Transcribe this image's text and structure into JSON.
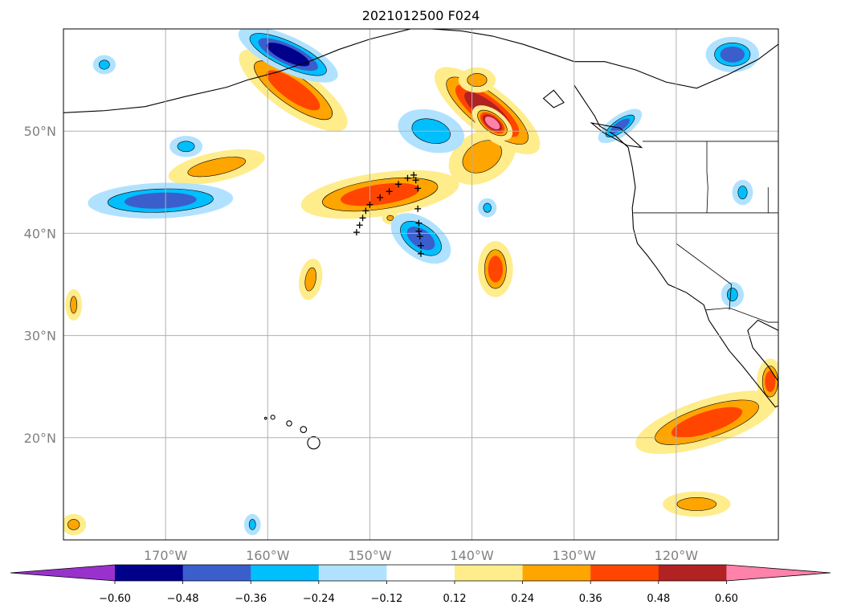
{
  "title": "2021012500 F024",
  "map": {
    "projection": "PlateCarree",
    "extent": {
      "lon_min": -180,
      "lon_max": -110,
      "lat_min": 10,
      "lat_max": 60
    },
    "lat_ticks": [
      {
        "value": 50,
        "label": "50°N"
      },
      {
        "value": 40,
        "label": "40°N"
      },
      {
        "value": 30,
        "label": "30°N"
      },
      {
        "value": 20,
        "label": "20°N"
      }
    ],
    "lon_ticks": [
      {
        "value": -170,
        "label": "170°W"
      },
      {
        "value": -160,
        "label": "160°W"
      },
      {
        "value": -150,
        "label": "150°W"
      },
      {
        "value": -140,
        "label": "140°W"
      },
      {
        "value": -130,
        "label": "130°W"
      },
      {
        "value": -120,
        "label": "120°W"
      }
    ],
    "gridlines": true,
    "coastline_color": "#000000",
    "gridline_color": "#b0b0b0"
  },
  "colorbar": {
    "orientation": "horizontal",
    "extend": "both",
    "levels": [
      -0.6,
      -0.48,
      -0.36,
      -0.24,
      -0.12,
      0.12,
      0.24,
      0.36,
      0.48,
      0.6
    ],
    "labels": [
      "−0.60",
      "−0.48",
      "−0.36",
      "−0.24",
      "−0.12",
      "0.12",
      "0.24",
      "0.36",
      "0.48",
      "0.60"
    ],
    "colors": [
      "#9932cc",
      "#00008b",
      "#3a5fcd",
      "#00bfff",
      "#b0e2ff",
      "#ffffff",
      "#ffec8b",
      "#ffa500",
      "#ff4500",
      "#b22222",
      "#ff82ab"
    ]
  },
  "track_markers": {
    "symbol": "+",
    "points": [
      [
        -151.3,
        40.1
      ],
      [
        -151.0,
        40.8
      ],
      [
        -150.7,
        41.5
      ],
      [
        -150.4,
        42.2
      ],
      [
        -150.0,
        42.8
      ],
      [
        -149.0,
        43.5
      ],
      [
        -148.1,
        44.1
      ],
      [
        -147.2,
        44.8
      ],
      [
        -146.3,
        45.4
      ],
      [
        -145.7,
        45.7
      ],
      [
        -145.5,
        45.2
      ],
      [
        -145.3,
        44.4
      ],
      [
        -145.3,
        42.4
      ],
      [
        -145.2,
        41.0
      ],
      [
        -145.2,
        40.2
      ],
      [
        -145.1,
        39.7
      ],
      [
        -145.0,
        38.8
      ],
      [
        -145.0,
        38.0
      ]
    ]
  },
  "anomaly_regions": [
    {
      "id": "positive-band-main",
      "lon": -149.0,
      "lat": 43.8,
      "rx": 7.5,
      "ry": 1.9,
      "rot": -8,
      "level": 0.36
    },
    {
      "id": "positive-band-east",
      "lon": -139.0,
      "lat": 47.5,
      "rx": 3.2,
      "ry": 2.2,
      "rot": -30,
      "level": 0.24
    },
    {
      "id": "positive-ne-strip",
      "lon": -138.5,
      "lat": 52.0,
      "rx": 6.0,
      "ry": 2.0,
      "rot": 38,
      "level": 0.48
    },
    {
      "id": "positive-ne-core",
      "lon": -138.0,
      "lat": 50.8,
      "rx": 2.0,
      "ry": 1.0,
      "rot": 38,
      "level": 0.6
    },
    {
      "id": "positive-aleutian",
      "lon": -157.5,
      "lat": 54.0,
      "rx": 6.0,
      "ry": 1.9,
      "rot": 35,
      "level": 0.36
    },
    {
      "id": "positive-west-mid",
      "lon": -165.0,
      "lat": 46.5,
      "rx": 4.5,
      "ry": 1.2,
      "rot": -12,
      "level": 0.24
    },
    {
      "id": "positive-mid-north",
      "lon": -139.5,
      "lat": 55.0,
      "rx": 1.5,
      "ry": 1.0,
      "rot": 0,
      "level": 0.24
    },
    {
      "id": "positive-tropical-east",
      "lon": -117.0,
      "lat": 21.5,
      "rx": 7.0,
      "ry": 2.0,
      "rot": -18,
      "level": 0.36
    },
    {
      "id": "positive-baja",
      "lon": -110.8,
      "lat": 25.5,
      "rx": 1.0,
      "ry": 2.0,
      "rot": 0,
      "level": 0.36
    },
    {
      "id": "positive-south-east",
      "lon": -118.0,
      "lat": 13.5,
      "rx": 3.0,
      "ry": 1.0,
      "rot": 0,
      "level": 0.24
    },
    {
      "id": "positive-sw-blob",
      "lon": -137.7,
      "lat": 36.5,
      "rx": 1.4,
      "ry": 2.5,
      "rot": 0,
      "level": 0.36
    },
    {
      "id": "positive-central-1",
      "lon": -155.8,
      "lat": 35.5,
      "rx": 0.8,
      "ry": 1.8,
      "rot": 10,
      "level": 0.24
    },
    {
      "id": "positive-central-2",
      "lon": -148.0,
      "lat": 41.5,
      "rx": 0.5,
      "ry": 0.4,
      "rot": 0,
      "level": 0.24
    },
    {
      "id": "positive-west-edge",
      "lon": -179.0,
      "lat": 33.0,
      "rx": 0.5,
      "ry": 1.3,
      "rot": 0,
      "level": 0.24
    },
    {
      "id": "positive-south-edge",
      "lon": -179.0,
      "lat": 11.5,
      "rx": 0.9,
      "ry": 0.8,
      "rot": 0,
      "level": 0.24
    },
    {
      "id": "negative-west-main",
      "lon": -170.5,
      "lat": 43.2,
      "rx": 6.8,
      "ry": 1.5,
      "rot": -2,
      "level": -0.36
    },
    {
      "id": "negative-aleutian-core",
      "lon": -158.0,
      "lat": 57.5,
      "rx": 5.0,
      "ry": 1.5,
      "rot": 25,
      "level": -0.48
    },
    {
      "id": "negative-south-central",
      "lon": -145.0,
      "lat": 39.5,
      "rx": 3.0,
      "ry": 1.7,
      "rot": 35,
      "level": -0.36
    },
    {
      "id": "negative-north-central",
      "lon": -144.0,
      "lat": 50.0,
      "rx": 3.0,
      "ry": 1.8,
      "rot": 15,
      "level": -0.24
    },
    {
      "id": "negative-canada-coast",
      "lon": -125.5,
      "lat": 50.5,
      "rx": 2.2,
      "ry": 0.8,
      "rot": -35,
      "level": -0.36
    },
    {
      "id": "negative-ne-corner",
      "lon": -114.5,
      "lat": 57.5,
      "rx": 2.3,
      "ry": 1.5,
      "rot": 0,
      "level": -0.36
    },
    {
      "id": "negative-west-north",
      "lon": -168.0,
      "lat": 48.5,
      "rx": 1.3,
      "ry": 0.8,
      "rot": 0,
      "level": -0.24
    },
    {
      "id": "negative-west-top",
      "lon": -176.0,
      "lat": 56.5,
      "rx": 0.8,
      "ry": 0.7,
      "rot": 0,
      "level": -0.24
    },
    {
      "id": "negative-inland-1",
      "lon": -113.5,
      "lat": 44.0,
      "rx": 0.7,
      "ry": 1.0,
      "rot": 0,
      "level": -0.24
    },
    {
      "id": "negative-inland-2",
      "lon": -114.5,
      "lat": 34.0,
      "rx": 0.8,
      "ry": 1.0,
      "rot": 0,
      "level": -0.24
    },
    {
      "id": "negative-small-1",
      "lon": -138.5,
      "lat": 42.5,
      "rx": 0.6,
      "ry": 0.7,
      "rot": 0,
      "level": -0.24
    },
    {
      "id": "negative-small-2",
      "lon": -161.5,
      "lat": 11.5,
      "rx": 0.5,
      "ry": 0.8,
      "rot": 0,
      "level": -0.24
    }
  ]
}
